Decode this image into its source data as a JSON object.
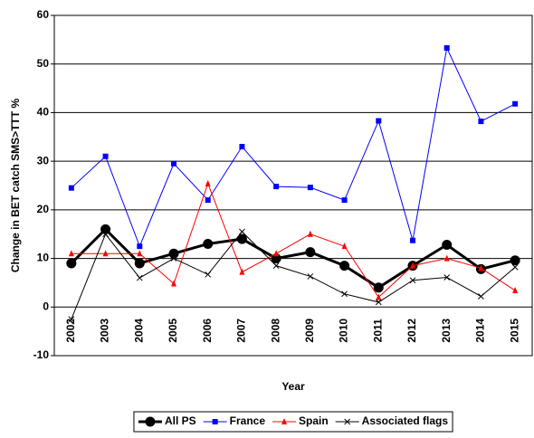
{
  "chart_data": {
    "type": "line",
    "y_label": "Change in BET catch SMS>TTT %",
    "x_label": "Year",
    "categories": [
      "2002",
      "2003",
      "2004",
      "2005",
      "2006",
      "2007",
      "2008",
      "2009",
      "2010",
      "2011",
      "2012",
      "2013",
      "2014",
      "2015"
    ],
    "ylim": [
      -10,
      60
    ],
    "yticks": [
      -10,
      0,
      10,
      20,
      30,
      40,
      50,
      60
    ],
    "grid": true,
    "legend": "bottom",
    "series": [
      {
        "name": "All PS",
        "color": "#000000",
        "marker": "circle",
        "values": [
          9,
          16,
          9,
          11,
          13,
          14,
          10,
          11.3,
          8.5,
          4,
          8.5,
          12.8,
          7.8,
          9.6
        ]
      },
      {
        "name": "France",
        "color": "#0000ff",
        "marker": "square",
        "values": [
          24.5,
          31,
          12.5,
          29.5,
          22,
          33,
          24.8,
          24.6,
          22,
          38.3,
          13.7,
          53.3,
          38.2,
          41.8
        ]
      },
      {
        "name": "Spain",
        "color": "#ff0000",
        "marker": "triangle",
        "values": [
          11,
          11,
          11,
          4.8,
          25.4,
          7.2,
          11,
          15,
          12.5,
          2,
          8.5,
          10,
          8,
          3.4
        ]
      },
      {
        "name": "Associated flags",
        "color": "#000000",
        "marker": "x",
        "values": [
          -2.5,
          15,
          6,
          10,
          6.7,
          15.5,
          8.5,
          6.3,
          2.7,
          1,
          5.5,
          6.1,
          2.2,
          8.2
        ]
      }
    ]
  }
}
